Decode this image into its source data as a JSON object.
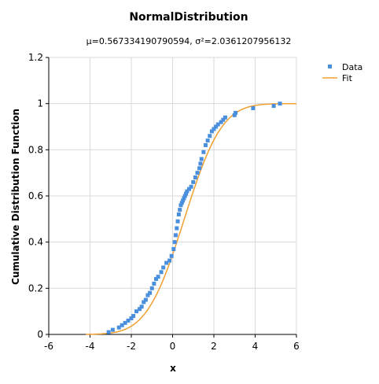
{
  "chart_data": {
    "type": "scatter",
    "title": "NormalDistribution",
    "subtitle": "μ=0.567334190790594, σ²=2.0361207956132",
    "xlabel": "x",
    "ylabel": "Cumulative Distribution Function",
    "xlim": [
      -6,
      6
    ],
    "ylim": [
      0,
      1.2
    ],
    "xticks": [
      "-6",
      "-4",
      "-2",
      "0",
      "2",
      "4",
      "6"
    ],
    "yticks": [
      "0",
      "0.2",
      "0.4",
      "0.6",
      "0.8",
      "1",
      "1.2"
    ],
    "grid": true,
    "legend_position": "top-right",
    "fit": {
      "mu": 0.567334190790594,
      "variance": 2.0361207956132
    },
    "series": [
      {
        "name": "Data",
        "kind": "points",
        "color": "#4a8fdd",
        "x": [
          -3.1,
          -2.9,
          -2.6,
          -2.45,
          -2.3,
          -2.15,
          -2.0,
          -1.9,
          -1.75,
          -1.6,
          -1.5,
          -1.4,
          -1.3,
          -1.2,
          -1.1,
          -1.0,
          -0.9,
          -0.8,
          -0.7,
          -0.55,
          -0.45,
          -0.3,
          -0.15,
          -0.05,
          0.05,
          0.1,
          0.15,
          0.2,
          0.25,
          0.3,
          0.35,
          0.4,
          0.45,
          0.5,
          0.55,
          0.6,
          0.65,
          0.7,
          0.8,
          0.9,
          1.0,
          1.1,
          1.2,
          1.3,
          1.35,
          1.4,
          1.5,
          1.6,
          1.7,
          1.8,
          1.9,
          2.0,
          2.1,
          2.2,
          2.35,
          2.45,
          2.55,
          3.0,
          3.05,
          3.9,
          4.9,
          5.2
        ],
        "y": [
          0.01,
          0.02,
          0.03,
          0.04,
          0.05,
          0.06,
          0.07,
          0.08,
          0.1,
          0.11,
          0.12,
          0.14,
          0.15,
          0.17,
          0.18,
          0.2,
          0.22,
          0.24,
          0.25,
          0.27,
          0.29,
          0.31,
          0.32,
          0.34,
          0.37,
          0.4,
          0.43,
          0.46,
          0.49,
          0.52,
          0.54,
          0.56,
          0.57,
          0.58,
          0.59,
          0.6,
          0.61,
          0.62,
          0.63,
          0.64,
          0.66,
          0.68,
          0.7,
          0.72,
          0.74,
          0.76,
          0.79,
          0.82,
          0.84,
          0.86,
          0.88,
          0.89,
          0.9,
          0.91,
          0.92,
          0.93,
          0.94,
          0.95,
          0.96,
          0.98,
          0.99,
          1.0
        ]
      },
      {
        "name": "Fit",
        "kind": "line",
        "color": "#f0a030"
      }
    ]
  }
}
